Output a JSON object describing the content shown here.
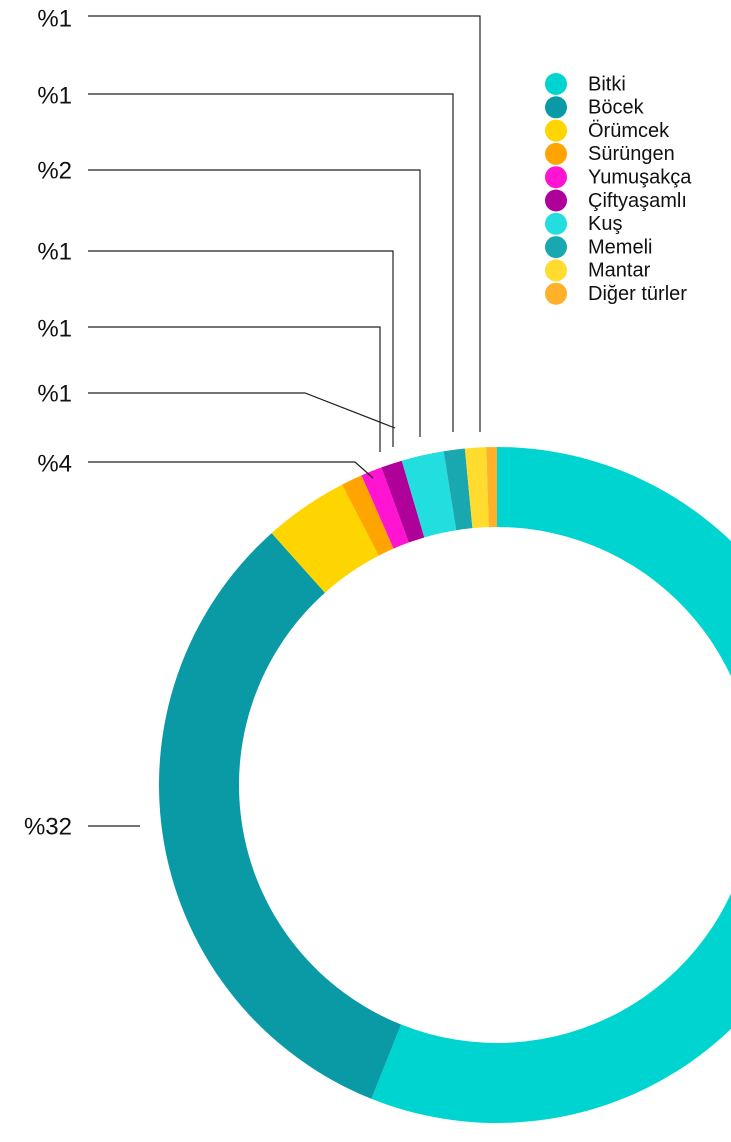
{
  "chart_data": {
    "type": "pie",
    "donut": true,
    "categories": [
      "Bitki",
      "Böcek",
      "Örümcek",
      "Sürüngen",
      "Yumuşakça",
      "Çiftyaşamlı",
      "Kuş",
      "Memeli",
      "Mantar",
      "Diğer türler"
    ],
    "values": [
      55.5,
      32,
      4,
      1,
      1,
      1,
      2,
      1,
      1,
      0.5
    ],
    "value_labels": [
      null,
      "%32",
      "%4",
      "%1",
      "%1",
      "%1",
      "%2",
      "%1",
      "%1",
      null
    ],
    "colors": [
      "#00d4d0",
      "#0a9aa6",
      "#ffd500",
      "#ffa400",
      "#ff14d2",
      "#b0009a",
      "#22dede",
      "#1aa8b0",
      "#ffdc2e",
      "#ffb12a"
    ],
    "legend": "top-right"
  }
}
